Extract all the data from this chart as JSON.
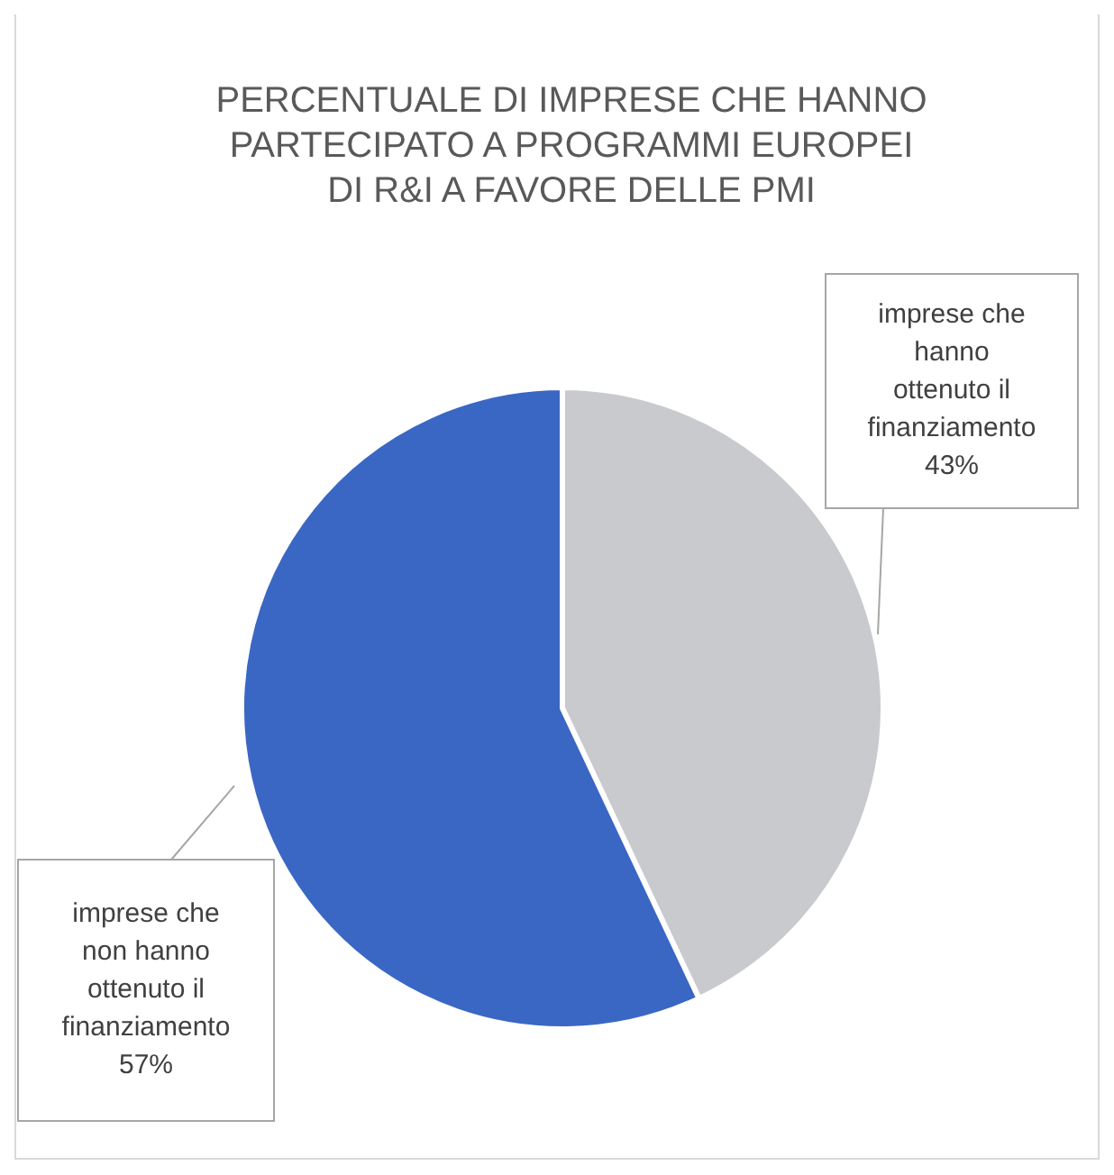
{
  "chart_data": {
    "type": "pie",
    "title": "PERCENTUALE DI IMPRESE CHE HANNO PARTECIPATO A PROGRAMMI EUROPEI DI R&I A FAVORE DELLE PMI",
    "categories": [
      "imprese che hanno ottenuto il finanziamento",
      "imprese che non hanno ottenuto il finanziamento"
    ],
    "values": [
      43,
      57
    ],
    "colors": [
      "#c9cacd",
      "#3a67c4"
    ],
    "value_labels": [
      "43%",
      "57%"
    ]
  }
}
